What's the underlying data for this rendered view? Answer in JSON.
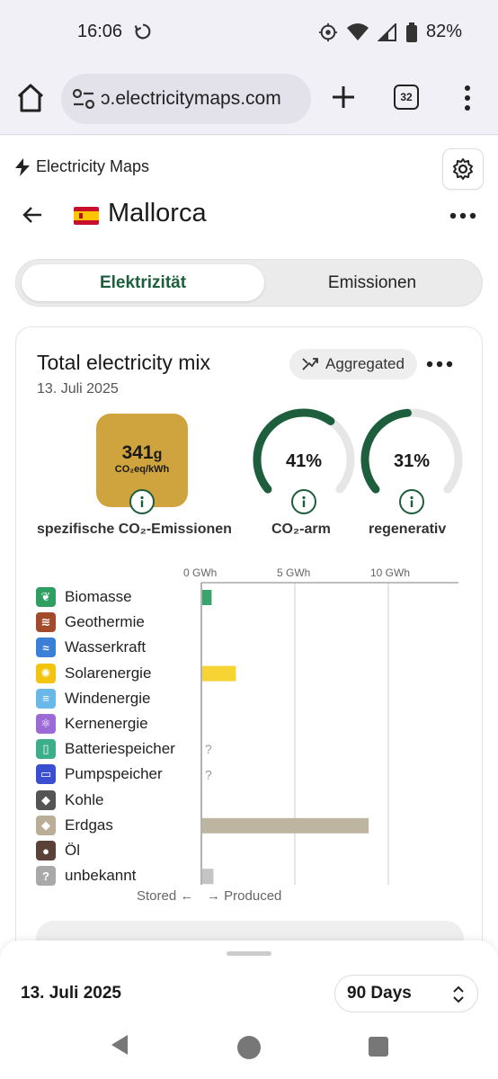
{
  "status_bar": {
    "time": "16:06",
    "battery": "82%"
  },
  "browser": {
    "url": "electricitymaps.com",
    "url_display": "ɔ.electricitymaps.com",
    "tab_count": "32"
  },
  "app": {
    "brand": "Electricity Maps",
    "region": "Mallorca",
    "tabs": [
      {
        "label": "Elektrizität",
        "active": true
      },
      {
        "label": "Emissionen",
        "active": false
      }
    ]
  },
  "card": {
    "title": "Total electricity mix",
    "date": "13. Juli 2025",
    "aggregated_label": "Aggregated",
    "co2": {
      "value": "341",
      "unit_g": "g",
      "unit": "CO₂eq/kWh",
      "label": "spezifische CO₂-Emissionen",
      "color": "#cfa33d"
    },
    "low_carbon": {
      "value": "41%",
      "fraction": 0.41,
      "label": "CO₂-arm"
    },
    "renewable": {
      "value": "31%",
      "fraction": 0.31,
      "label": "regenerativ"
    }
  },
  "chart_data": {
    "type": "bar",
    "orientation": "horizontal",
    "unit": "GWh",
    "tick_labels": [
      "0 GWh",
      "5 GWh",
      "10 GWh"
    ],
    "ticks": [
      0,
      5,
      10
    ],
    "xlim": [
      0,
      13
    ],
    "categories": [
      "Biomasse",
      "Geothermie",
      "Wasserkraft",
      "Solarenergie",
      "Windenergie",
      "Kernenergie",
      "Batteriespeicher",
      "Pumpspeicher",
      "Kohle",
      "Erdgas",
      "Öl",
      "unbekannt"
    ],
    "values": [
      0.5,
      0,
      0,
      1.8,
      0,
      0,
      null,
      null,
      0,
      8.9,
      0,
      0.6
    ],
    "unknown_marker": "?",
    "colors": [
      "#2f9e61",
      "#a34a2a",
      "#3b7fd6",
      "#f3c40e",
      "#6ab8e8",
      "#9c6ad6",
      "#3dae8a",
      "#3a4fcf",
      "#555555",
      "#bbae96",
      "#5a4238",
      "#a9a9a9"
    ],
    "bar_colors": [
      "#3aa56b",
      "",
      "",
      "#f8d334",
      "",
      "",
      "",
      "",
      "",
      "#bdb5a0",
      "",
      "#c4c4c4"
    ],
    "stored_label": "Stored ←",
    "produced_label": "→ Produced"
  },
  "bottom": {
    "date": "13. Juli 2025",
    "range": "90 Days"
  }
}
